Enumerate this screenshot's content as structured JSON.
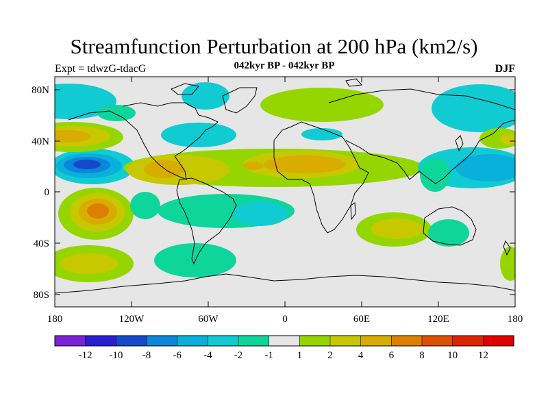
{
  "title": "Streamfunction Perturbation at 200 hPa (km2/s)",
  "subtitle": "042kyr BP - 042kyr BP",
  "experiment": "Expt = tdwzG-tdacG",
  "season": "DJF",
  "map": {
    "projection": "cylindrical equidistant",
    "lon_range": [
      -180,
      180
    ],
    "lat_range": [
      -90,
      90
    ],
    "lat_labels": [
      "80N",
      "40N",
      "0",
      "40S",
      "80S"
    ],
    "lon_labels": [
      "180",
      "120W",
      "60W",
      "0",
      "60E",
      "120E",
      "180"
    ],
    "fill_type": "filled contour",
    "coastline_color": "#000000",
    "no_data_color": "#e6e6e6"
  },
  "colorbar": {
    "tick_labels": [
      "-12",
      "-10",
      "-8",
      "-6",
      "-4",
      "-2",
      "-1",
      "1",
      "2",
      "4",
      "6",
      "8",
      "10",
      "12"
    ],
    "colors": [
      "#7a22d6",
      "#2a1ed0",
      "#1549cc",
      "#0c86d8",
      "#0ab0dc",
      "#10ccd2",
      "#0ed69a",
      "#e6e6e6",
      "#96d600",
      "#c8c800",
      "#d8ac00",
      "#dc8000",
      "#dc5000",
      "#dc2400",
      "#e00000"
    ]
  },
  "chart_data": {
    "type": "heatmap",
    "title": "Streamfunction Perturbation at 200 hPa (km2/s)",
    "subtitle": "042kyr BP - 042kyr BP",
    "levels": [
      -12,
      -10,
      -8,
      -6,
      -4,
      -2,
      -1,
      1,
      2,
      4,
      6,
      8,
      10,
      12
    ],
    "features": [
      {
        "lon": -162,
        "lat": 22,
        "value": -9,
        "kind": "low"
      },
      {
        "lon": -140,
        "lat": -16,
        "value": 8,
        "kind": "high"
      },
      {
        "lon": -170,
        "lat": 44,
        "value": 5,
        "kind": "high"
      },
      {
        "lon": 20,
        "lat": 22,
        "value": 6,
        "kind": "high"
      },
      {
        "lon": -90,
        "lat": 17,
        "value": 5,
        "kind": "high"
      },
      {
        "lon": 170,
        "lat": 20,
        "value": -5,
        "kind": "low"
      },
      {
        "lon": -30,
        "lat": -18,
        "value": -4,
        "kind": "low"
      },
      {
        "lon": 60,
        "lat": -28,
        "value": 4,
        "kind": "high"
      },
      {
        "lon": -150,
        "lat": -56,
        "value": 4,
        "kind": "high"
      },
      {
        "lon": 10,
        "lat": 72,
        "value": 2,
        "kind": "high"
      },
      {
        "lon": 140,
        "lat": 72,
        "value": -2,
        "kind": "low"
      },
      {
        "lon": -60,
        "lat": 52,
        "value": -3,
        "kind": "low"
      }
    ]
  }
}
